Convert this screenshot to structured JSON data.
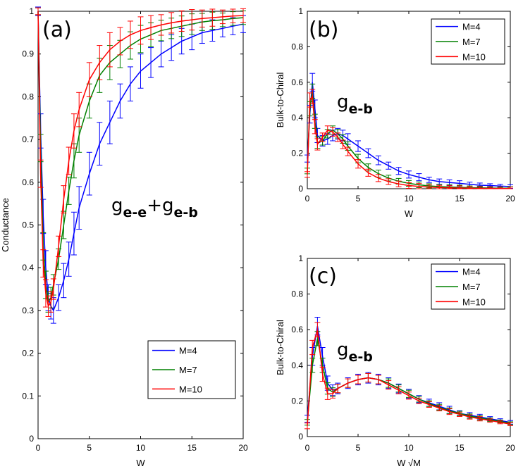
{
  "figure": {
    "series_names": [
      "M=4",
      "M=7",
      "M=10"
    ],
    "colors": [
      "#0000ff",
      "#008000",
      "#ff0000"
    ]
  },
  "chart_data": [
    {
      "type": "line",
      "panel_label": "(a)",
      "xlabel": "W",
      "ylabel": "Conductance",
      "xlim": [
        0,
        20
      ],
      "ylim": [
        0,
        1
      ],
      "xticks": [
        "0",
        "5",
        "10",
        "15",
        "20"
      ],
      "yticks": [
        "0",
        "0.1",
        "0.2",
        "0.3",
        "0.4",
        "0.5",
        "0.6",
        "0.7",
        "0.8",
        "0.9",
        "1"
      ],
      "annotation": {
        "main1": "g",
        "sub1": "e-e",
        "plus": "+",
        "main2": "g",
        "sub2": "e-b"
      },
      "legend": {
        "position": "bottom-right",
        "entries": [
          "M=4",
          "M=7",
          "M=10"
        ]
      },
      "series": [
        {
          "name": "M=4",
          "x": [
            0,
            0.25,
            0.5,
            0.75,
            1,
            1.25,
            1.5,
            2,
            2.5,
            3,
            3.5,
            4,
            5,
            6,
            7,
            8,
            9,
            10,
            11,
            12,
            13,
            14,
            15,
            16,
            17,
            18,
            19,
            20
          ],
          "y": [
            1.0,
            0.72,
            0.52,
            0.4,
            0.33,
            0.31,
            0.3,
            0.33,
            0.37,
            0.42,
            0.48,
            0.54,
            0.62,
            0.69,
            0.74,
            0.79,
            0.83,
            0.86,
            0.88,
            0.9,
            0.915,
            0.93,
            0.94,
            0.95,
            0.955,
            0.96,
            0.965,
            0.97
          ],
          "err": [
            0.01,
            0.04,
            0.04,
            0.04,
            0.03,
            0.03,
            0.03,
            0.03,
            0.04,
            0.04,
            0.05,
            0.05,
            0.05,
            0.05,
            0.05,
            0.04,
            0.04,
            0.04,
            0.035,
            0.03,
            0.03,
            0.03,
            0.03,
            0.025,
            0.025,
            0.02,
            0.02,
            0.02
          ]
        },
        {
          "name": "M=7",
          "x": [
            0,
            0.25,
            0.5,
            0.75,
            1,
            1.25,
            1.5,
            2,
            2.5,
            3,
            3.5,
            4,
            5,
            6,
            7,
            8,
            9,
            10,
            11,
            12,
            13,
            14,
            15,
            16,
            17,
            18,
            19,
            20
          ],
          "y": [
            1.0,
            0.68,
            0.45,
            0.36,
            0.32,
            0.33,
            0.36,
            0.42,
            0.5,
            0.58,
            0.65,
            0.71,
            0.79,
            0.85,
            0.88,
            0.9,
            0.92,
            0.935,
            0.945,
            0.955,
            0.96,
            0.965,
            0.97,
            0.975,
            0.978,
            0.98,
            0.983,
            0.985
          ]
        },
        {
          "name": "M=10",
          "x": [
            0,
            0.25,
            0.5,
            0.75,
            1,
            1.25,
            1.5,
            2,
            2.5,
            3,
            3.5,
            4,
            5,
            6,
            7,
            8,
            9,
            10,
            11,
            12,
            13,
            14,
            15,
            16,
            17,
            18,
            19,
            20
          ],
          "y": [
            1.0,
            0.62,
            0.41,
            0.34,
            0.31,
            0.32,
            0.35,
            0.45,
            0.56,
            0.65,
            0.72,
            0.77,
            0.84,
            0.88,
            0.91,
            0.93,
            0.945,
            0.955,
            0.962,
            0.968,
            0.973,
            0.977,
            0.98,
            0.983,
            0.985,
            0.987,
            0.989,
            0.99
          ]
        }
      ]
    },
    {
      "type": "line",
      "panel_label": "(b)",
      "xlabel": "W",
      "ylabel": "Bulk-to-Chiral",
      "xlim": [
        0,
        20
      ],
      "ylim": [
        0,
        1
      ],
      "xticks": [
        "0",
        "5",
        "10",
        "15",
        "20"
      ],
      "yticks": [
        "0",
        "0.2",
        "0.4",
        "0.6",
        "0.8",
        "1"
      ],
      "annotation": {
        "main": "g",
        "sub": "e-b"
      },
      "legend": {
        "position": "top-right",
        "entries": [
          "M=4",
          "M=7",
          "M=10"
        ]
      },
      "series": [
        {
          "name": "M=4",
          "x": [
            0,
            0.25,
            0.5,
            0.75,
            1,
            1.5,
            2,
            2.5,
            3,
            3.5,
            4,
            5,
            6,
            7,
            8,
            9,
            10,
            11,
            12,
            13,
            14,
            15,
            16,
            17,
            18,
            19,
            20
          ],
          "y": [
            0.17,
            0.42,
            0.6,
            0.45,
            0.3,
            0.27,
            0.28,
            0.3,
            0.31,
            0.3,
            0.28,
            0.24,
            0.2,
            0.16,
            0.13,
            0.1,
            0.08,
            0.065,
            0.05,
            0.04,
            0.035,
            0.03,
            0.025,
            0.02,
            0.018,
            0.015,
            0.012
          ],
          "err": [
            0.02,
            0.05,
            0.05,
            0.05,
            0.04,
            0.03,
            0.03,
            0.03,
            0.03,
            0.03,
            0.03,
            0.03,
            0.025,
            0.025,
            0.02,
            0.02,
            0.02,
            0.02,
            0.015,
            0.015,
            0.015,
            0.015,
            0.012,
            0.012,
            0.01,
            0.01,
            0.01
          ]
        },
        {
          "name": "M=7",
          "x": [
            0,
            0.25,
            0.5,
            0.75,
            1,
            1.5,
            2,
            2.5,
            3,
            3.5,
            4,
            5,
            6,
            7,
            8,
            9,
            10,
            11,
            12,
            13,
            14,
            15,
            16,
            17,
            18,
            19,
            20
          ],
          "y": [
            0.1,
            0.45,
            0.55,
            0.38,
            0.26,
            0.27,
            0.31,
            0.33,
            0.31,
            0.28,
            0.24,
            0.17,
            0.12,
            0.085,
            0.06,
            0.042,
            0.03,
            0.022,
            0.016,
            0.012,
            0.01,
            0.008,
            0.006,
            0.005,
            0.004,
            0.003,
            0.003
          ]
        },
        {
          "name": "M=10",
          "x": [
            0,
            0.25,
            0.5,
            0.75,
            1,
            1.5,
            2,
            2.5,
            3,
            3.5,
            4,
            5,
            6,
            7,
            8,
            9,
            10,
            11,
            12,
            13,
            14,
            15,
            16,
            17,
            18,
            19,
            20
          ],
          "y": [
            0.08,
            0.5,
            0.52,
            0.35,
            0.25,
            0.29,
            0.33,
            0.32,
            0.29,
            0.25,
            0.21,
            0.14,
            0.09,
            0.06,
            0.04,
            0.027,
            0.018,
            0.013,
            0.009,
            0.007,
            0.005,
            0.004,
            0.003,
            0.002,
            0.002,
            0.001,
            0.001
          ]
        }
      ]
    },
    {
      "type": "line",
      "panel_label": "(c)",
      "xlabel": "W √M",
      "ylabel": "Bulk-to-Chiral",
      "xlim": [
        0,
        20
      ],
      "ylim": [
        0,
        1
      ],
      "xticks": [
        "0",
        "5",
        "10",
        "15",
        "20"
      ],
      "yticks": [
        "0",
        "0.2",
        "0.4",
        "0.6",
        "0.8",
        "1"
      ],
      "annotation": {
        "main": "g",
        "sub": "e-b"
      },
      "legend": {
        "position": "top-right",
        "entries": [
          "M=4",
          "M=7",
          "M=10"
        ]
      },
      "series": [
        {
          "name": "M=4",
          "x": [
            0,
            0.5,
            1,
            1.5,
            2,
            2.5,
            3,
            4,
            5,
            6,
            7,
            8,
            9,
            10,
            11,
            12,
            13,
            14,
            15,
            16,
            17,
            18,
            19,
            20
          ],
          "y": [
            0.1,
            0.45,
            0.62,
            0.45,
            0.3,
            0.26,
            0.27,
            0.3,
            0.32,
            0.33,
            0.32,
            0.3,
            0.27,
            0.24,
            0.21,
            0.19,
            0.17,
            0.15,
            0.13,
            0.12,
            0.11,
            0.1,
            0.09,
            0.08
          ],
          "err": [
            0.02,
            0.05,
            0.05,
            0.05,
            0.04,
            0.03,
            0.03,
            0.03,
            0.03,
            0.03,
            0.03,
            0.03,
            0.025,
            0.025,
            0.02,
            0.02,
            0.02,
            0.02,
            0.015,
            0.015,
            0.015,
            0.012,
            0.01,
            0.01
          ]
        },
        {
          "name": "M=7",
          "x": [
            0,
            0.5,
            1,
            1.5,
            2,
            2.5,
            3,
            4,
            5,
            6,
            7,
            8,
            9,
            10,
            11,
            12,
            13,
            14,
            15,
            16,
            17,
            18,
            19,
            20
          ],
          "y": [
            0.08,
            0.4,
            0.55,
            0.4,
            0.27,
            0.25,
            0.27,
            0.3,
            0.32,
            0.33,
            0.32,
            0.3,
            0.27,
            0.24,
            0.21,
            0.185,
            0.165,
            0.145,
            0.13,
            0.115,
            0.105,
            0.095,
            0.085,
            0.075
          ]
        },
        {
          "name": "M=10",
          "x": [
            0,
            0.5,
            1,
            1.5,
            2,
            2.5,
            3,
            4,
            5,
            6,
            7,
            8,
            9,
            10,
            11,
            12,
            13,
            14,
            15,
            16,
            17,
            18,
            19,
            20
          ],
          "y": [
            0.06,
            0.5,
            0.6,
            0.35,
            0.24,
            0.24,
            0.27,
            0.3,
            0.32,
            0.33,
            0.32,
            0.29,
            0.26,
            0.23,
            0.2,
            0.18,
            0.16,
            0.14,
            0.125,
            0.11,
            0.1,
            0.09,
            0.08,
            0.07
          ]
        }
      ]
    }
  ]
}
